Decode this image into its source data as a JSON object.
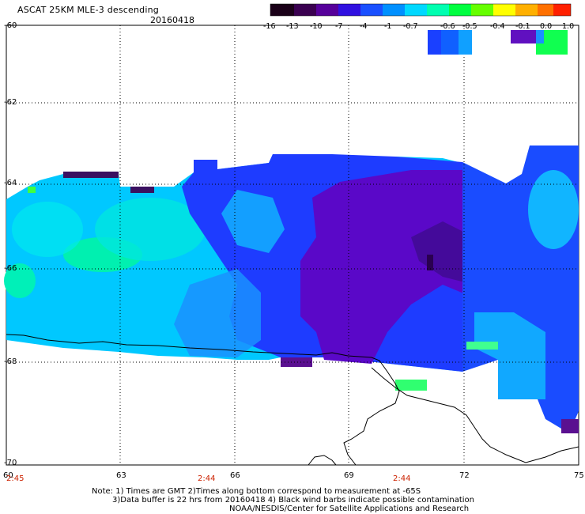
{
  "header": {
    "title": "ASCAT 25KM MLE-3 descending",
    "date": "20160418"
  },
  "colorbar": {
    "labels": [
      "-16",
      "-13",
      "-10",
      "-7",
      "-4",
      "-1",
      "-0.7",
      "-0.6",
      "-0.5",
      "-0.4",
      "-0.1",
      "0.0",
      "1.0"
    ],
    "colors": [
      "#1a0018",
      "#3a0050",
      "#56009a",
      "#4800d8",
      "#1a1aff",
      "#0055ff",
      "#0099ff",
      "#00ddff",
      "#00ffb0",
      "#00ff40",
      "#66ff00",
      "#ffff00",
      "#ffa000",
      "#ff3000"
    ]
  },
  "axes": {
    "lat_labels": [
      "-60",
      "-62",
      "-64",
      "-66",
      "-68",
      "-70"
    ],
    "lon_labels": [
      "60",
      "63",
      "66",
      "69",
      "72",
      "75"
    ],
    "time_labels": [
      "2:45",
      "2:44",
      "2:44"
    ]
  },
  "footer": {
    "note_line1": "Note: 1) Times are GMT 2)Times along bottom correspond to measurement at -65S",
    "note_line2": "3)Data buffer is 22 hrs from 20160418 4) Black wind barbs indicate possible contamination",
    "credit": "NOAA/NESDIS/Center for Satellite Applications and Research"
  }
}
